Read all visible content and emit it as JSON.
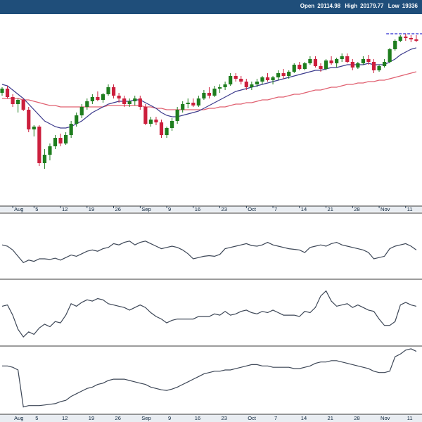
{
  "header": {
    "open_label": "Open",
    "open_value": "20114.98",
    "high_label": "High",
    "high_value": "20179.77",
    "low_label": "Low",
    "low_value": "19336"
  },
  "chart_data": [
    {
      "type": "candlestick",
      "title": "",
      "x_tick_labels": [
        "Aug",
        "5",
        "12",
        "19",
        "26",
        "Sep",
        "9",
        "16",
        "23",
        "Oct",
        "7",
        "14",
        "21",
        "28",
        "Nov",
        "11"
      ],
      "candles": [
        [
          80,
          84,
          78,
          83
        ],
        [
          83,
          85,
          76,
          77
        ],
        [
          77,
          79,
          70,
          72
        ],
        [
          72,
          76,
          66,
          75
        ],
        [
          75,
          76,
          67,
          68
        ],
        [
          68,
          70,
          52,
          54
        ],
        [
          54,
          57,
          49,
          56
        ],
        [
          56,
          57,
          28,
          30
        ],
        [
          30,
          40,
          26,
          36
        ],
        [
          36,
          44,
          32,
          42
        ],
        [
          42,
          50,
          40,
          48
        ],
        [
          48,
          51,
          42,
          44
        ],
        [
          44,
          52,
          43,
          50
        ],
        [
          50,
          60,
          48,
          58
        ],
        [
          58,
          66,
          56,
          64
        ],
        [
          64,
          72,
          62,
          70
        ],
        [
          70,
          76,
          68,
          74
        ],
        [
          74,
          79,
          72,
          77
        ],
        [
          77,
          81,
          74,
          75
        ],
        [
          75,
          80,
          73,
          79
        ],
        [
          79,
          86,
          78,
          84
        ],
        [
          84,
          86,
          76,
          78
        ],
        [
          78,
          80,
          73,
          76
        ],
        [
          76,
          78,
          70,
          72
        ],
        [
          72,
          76,
          70,
          74
        ],
        [
          74,
          78,
          71,
          76
        ],
        [
          76,
          78,
          68,
          70
        ],
        [
          70,
          72,
          57,
          58
        ],
        [
          58,
          63,
          56,
          61
        ],
        [
          61,
          63,
          57,
          59
        ],
        [
          59,
          61,
          48,
          50
        ],
        [
          50,
          56,
          48,
          55
        ],
        [
          55,
          62,
          53,
          60
        ],
        [
          60,
          70,
          58,
          68
        ],
        [
          68,
          74,
          66,
          72
        ],
        [
          72,
          76,
          69,
          73
        ],
        [
          73,
          76,
          70,
          71
        ],
        [
          71,
          78,
          70,
          76
        ],
        [
          76,
          82,
          75,
          80
        ],
        [
          80,
          84,
          76,
          78
        ],
        [
          78,
          85,
          77,
          83
        ],
        [
          83,
          86,
          80,
          84
        ],
        [
          84,
          88,
          82,
          86
        ],
        [
          86,
          94,
          85,
          92
        ],
        [
          92,
          94,
          88,
          90
        ],
        [
          90,
          92,
          86,
          88
        ],
        [
          88,
          90,
          82,
          84
        ],
        [
          84,
          88,
          82,
          86
        ],
        [
          86,
          90,
          84,
          88
        ],
        [
          88,
          92,
          86,
          91
        ],
        [
          91,
          94,
          88,
          89
        ],
        [
          89,
          92,
          86,
          91
        ],
        [
          91,
          96,
          89,
          94
        ],
        [
          94,
          97,
          90,
          92
        ],
        [
          92,
          96,
          90,
          95
        ],
        [
          95,
          101,
          94,
          100
        ],
        [
          100,
          102,
          96,
          97
        ],
        [
          97,
          102,
          96,
          101
        ],
        [
          101,
          106,
          100,
          104
        ],
        [
          104,
          106,
          98,
          99
        ],
        [
          99,
          101,
          95,
          97
        ],
        [
          97,
          104,
          96,
          103
        ],
        [
          103,
          106,
          100,
          101
        ],
        [
          101,
          105,
          98,
          104
        ],
        [
          104,
          108,
          102,
          106
        ],
        [
          106,
          108,
          101,
          102
        ],
        [
          102,
          104,
          96,
          98
        ],
        [
          98,
          102,
          97,
          101
        ],
        [
          101,
          106,
          100,
          104
        ],
        [
          104,
          107,
          100,
          102
        ],
        [
          102,
          104,
          94,
          96
        ],
        [
          96,
          100,
          95,
          99
        ],
        [
          99,
          104,
          98,
          102
        ],
        [
          102,
          112,
          101,
          111
        ],
        [
          111,
          118,
          110,
          117
        ],
        [
          117,
          121,
          116,
          120
        ],
        [
          120,
          122,
          117,
          119
        ],
        [
          119,
          121,
          116,
          118
        ],
        [
          118,
          121,
          116,
          117
        ]
      ],
      "ema_fast": [
        86,
        85,
        82,
        79,
        76,
        72,
        68,
        64,
        60,
        58,
        56,
        55,
        55,
        56,
        58,
        60,
        63,
        66,
        68,
        70,
        72,
        73,
        74,
        74,
        74,
        75,
        75,
        73,
        71,
        69,
        66,
        64,
        63,
        63,
        64,
        65,
        66,
        67,
        69,
        71,
        73,
        75,
        77,
        79,
        81,
        82,
        83,
        84,
        85,
        86,
        87,
        88,
        89,
        90,
        91,
        92,
        93,
        94,
        95,
        96,
        96,
        97,
        98,
        98,
        99,
        100,
        100,
        100,
        100,
        101,
        100,
        100,
        100,
        102,
        104,
        107,
        109,
        111,
        112
      ],
      "ema_slow": [
        76,
        76,
        76,
        76,
        75,
        75,
        74,
        73,
        72,
        71,
        71,
        70,
        70,
        70,
        70,
        70,
        70,
        70,
        70,
        70,
        71,
        71,
        71,
        71,
        71,
        71,
        71,
        70,
        70,
        69,
        69,
        68,
        68,
        68,
        68,
        68,
        68,
        68,
        68,
        69,
        69,
        70,
        70,
        71,
        72,
        72,
        73,
        73,
        74,
        75,
        75,
        76,
        77,
        77,
        78,
        79,
        79,
        80,
        81,
        82,
        82,
        83,
        84,
        84,
        85,
        86,
        86,
        87,
        87,
        88,
        88,
        89,
        89,
        90,
        91,
        92,
        93,
        94,
        95
      ],
      "resistance_level": 120
    },
    {
      "type": "line",
      "title": "",
      "values": [
        52,
        50,
        44,
        34,
        24,
        28,
        26,
        30,
        30,
        29,
        31,
        28,
        32,
        36,
        34,
        38,
        42,
        44,
        42,
        46,
        48,
        54,
        52,
        56,
        58,
        52,
        56,
        58,
        54,
        50,
        46,
        48,
        50,
        48,
        44,
        38,
        30,
        32,
        34,
        35,
        34,
        37,
        46,
        48,
        50,
        52,
        54,
        51,
        50,
        52,
        56,
        52,
        50,
        48,
        46,
        45,
        44,
        40,
        48,
        50,
        52,
        50,
        54,
        56,
        52,
        50,
        48,
        46,
        44,
        40,
        30,
        32,
        34,
        46,
        50,
        52,
        54,
        50,
        44
      ]
    },
    {
      "type": "line",
      "title": "",
      "values": [
        60,
        62,
        46,
        24,
        12,
        20,
        16,
        26,
        32,
        28,
        36,
        34,
        46,
        64,
        60,
        66,
        70,
        68,
        72,
        70,
        64,
        62,
        60,
        58,
        54,
        58,
        62,
        58,
        50,
        44,
        40,
        34,
        38,
        40,
        40,
        40,
        40,
        44,
        44,
        44,
        48,
        46,
        52,
        46,
        48,
        52,
        54,
        50,
        48,
        52,
        50,
        54,
        50,
        46,
        46,
        46,
        44,
        52,
        50,
        58,
        76,
        84,
        68,
        60,
        62,
        64,
        58,
        62,
        58,
        54,
        52,
        40,
        30,
        30,
        36,
        62,
        66,
        62,
        60
      ]
    },
    {
      "type": "line",
      "title": "",
      "values": [
        72,
        72,
        70,
        66,
        10,
        12,
        12,
        12,
        13,
        14,
        15,
        18,
        20,
        26,
        30,
        34,
        38,
        40,
        44,
        46,
        50,
        52,
        52,
        52,
        50,
        48,
        46,
        44,
        40,
        38,
        36,
        35,
        37,
        40,
        44,
        48,
        52,
        56,
        60,
        62,
        64,
        64,
        66,
        66,
        68,
        70,
        72,
        74,
        74,
        72,
        72,
        70,
        70,
        70,
        70,
        68,
        68,
        70,
        72,
        76,
        78,
        78,
        80,
        80,
        78,
        76,
        74,
        72,
        70,
        68,
        64,
        62,
        62,
        64,
        86,
        90,
        96,
        98,
        94
      ]
    }
  ],
  "colors": {
    "header_bg": "#1f4e7a",
    "up_candle": "#1e7d1e",
    "down_candle": "#cc1f3d",
    "ema_fast": "#3b3a8c",
    "ema_slow": "#e06070",
    "resistance": "#2b2bd0",
    "indicator_line": "#3c4656",
    "panel_border": "#3a3a3a"
  }
}
